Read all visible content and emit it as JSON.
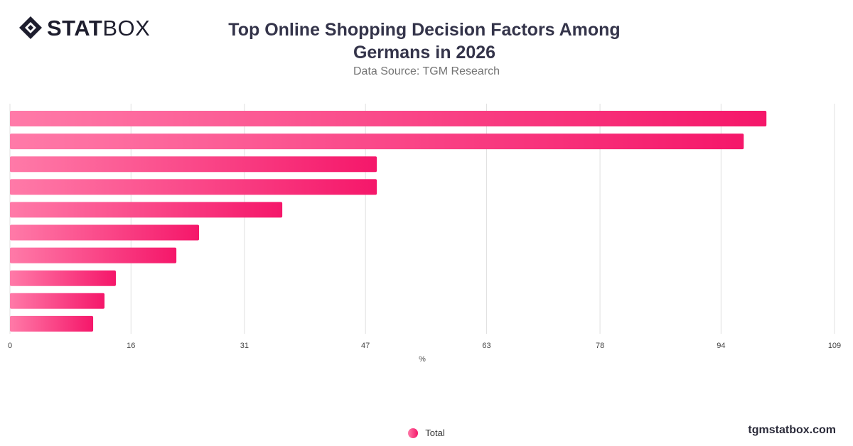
{
  "header": {
    "logo_bold": "STAT",
    "logo_light": "BOX",
    "title": "Top Online Shopping Decision Factors Among Germans in 2026",
    "subtitle": "Data Source: TGM Research"
  },
  "footer": {
    "website": "tgmstatbox.com"
  },
  "colors": {
    "bar_start": "#ff7aa8",
    "bar_end": "#f5176a",
    "grid": "#e0e0e0",
    "text": "#34344a"
  },
  "chart_data": {
    "type": "bar",
    "orientation": "horizontal",
    "title": "Top Online Shopping Decision Factors Among Germans in 2026",
    "xlabel": "%",
    "ylabel": "",
    "xlim": [
      0,
      109
    ],
    "x_ticks": [
      "0",
      "16",
      "31",
      "47",
      "63",
      "78",
      "94",
      "109"
    ],
    "category_labels_visible": false,
    "series": [
      {
        "name": "Total",
        "values": [
          100,
          97,
          48.5,
          48.5,
          36,
          25,
          22,
          14,
          12.5,
          11
        ]
      }
    ],
    "legend": {
      "position": "bottom-center",
      "entries": [
        "Total"
      ]
    },
    "grid": true
  }
}
